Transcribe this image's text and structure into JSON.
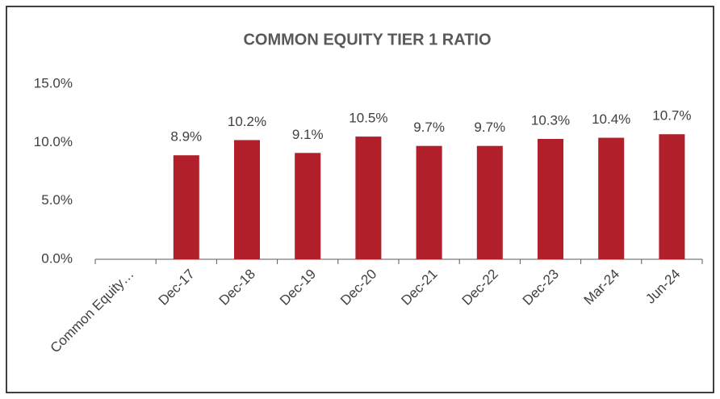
{
  "chart_data": {
    "type": "bar",
    "title": "COMMON EQUITY TIER 1 RATIO",
    "categories": [
      "Common Equity…",
      "Dec-17",
      "Dec-18",
      "Dec-19",
      "Dec-20",
      "Dec-21",
      "Dec-22",
      "Dec-23",
      "Mar-24",
      "Jun-24"
    ],
    "values": [
      null,
      8.9,
      10.2,
      9.1,
      10.5,
      9.7,
      9.7,
      10.3,
      10.4,
      10.7
    ],
    "value_labels": [
      null,
      "8.9%",
      "10.2%",
      "9.1%",
      "10.5%",
      "9.7%",
      "9.7%",
      "10.3%",
      "10.4%",
      "10.7%"
    ],
    "color": "#b01f2a",
    "ylim": [
      0,
      15
    ],
    "yticks": [
      {
        "value": 0,
        "label": "0.0%"
      },
      {
        "value": 5,
        "label": "5.0%"
      },
      {
        "value": 10,
        "label": "10.0%"
      },
      {
        "value": 15,
        "label": "15.0%"
      }
    ],
    "grid": false
  }
}
